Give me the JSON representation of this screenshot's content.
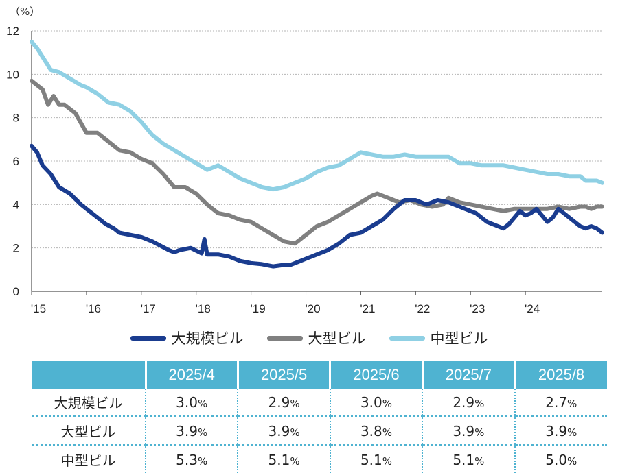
{
  "chart_data": {
    "type": "line",
    "ylabel": "（%）",
    "ylim": [
      0,
      12
    ],
    "yticks": [
      "0",
      "2",
      "4",
      "6",
      "8",
      "10",
      "12"
    ],
    "xticks": [
      "'15",
      "'16",
      "'17",
      "'18",
      "'19",
      "'20",
      "'21",
      "'22",
      "'23",
      "'24"
    ],
    "grid": true,
    "legend_position": "bottom",
    "series": [
      {
        "name": "大規模ビル",
        "color": "#1a3c8f",
        "points": [
          [
            2015.0,
            6.7
          ],
          [
            2015.1,
            6.4
          ],
          [
            2015.2,
            5.8
          ],
          [
            2015.35,
            5.4
          ],
          [
            2015.5,
            4.8
          ],
          [
            2015.7,
            4.5
          ],
          [
            2015.9,
            4.0
          ],
          [
            2016.0,
            3.8
          ],
          [
            2016.2,
            3.4
          ],
          [
            2016.35,
            3.1
          ],
          [
            2016.5,
            2.9
          ],
          [
            2016.6,
            2.7
          ],
          [
            2016.8,
            2.6
          ],
          [
            2017.0,
            2.5
          ],
          [
            2017.2,
            2.3
          ],
          [
            2017.35,
            2.1
          ],
          [
            2017.5,
            1.9
          ],
          [
            2017.6,
            1.8
          ],
          [
            2017.7,
            1.9
          ],
          [
            2017.9,
            2.0
          ],
          [
            2018.1,
            1.75
          ],
          [
            2018.15,
            2.4
          ],
          [
            2018.2,
            1.7
          ],
          [
            2018.4,
            1.7
          ],
          [
            2018.6,
            1.6
          ],
          [
            2018.8,
            1.4
          ],
          [
            2019.0,
            1.3
          ],
          [
            2019.2,
            1.25
          ],
          [
            2019.4,
            1.15
          ],
          [
            2019.55,
            1.2
          ],
          [
            2019.7,
            1.2
          ],
          [
            2019.85,
            1.35
          ],
          [
            2020.0,
            1.5
          ],
          [
            2020.2,
            1.7
          ],
          [
            2020.4,
            1.9
          ],
          [
            2020.6,
            2.2
          ],
          [
            2020.8,
            2.6
          ],
          [
            2021.0,
            2.7
          ],
          [
            2021.2,
            3.0
          ],
          [
            2021.4,
            3.3
          ],
          [
            2021.6,
            3.8
          ],
          [
            2021.7,
            4.0
          ],
          [
            2021.8,
            4.2
          ],
          [
            2022.0,
            4.2
          ],
          [
            2022.2,
            4.0
          ],
          [
            2022.4,
            4.2
          ],
          [
            2022.6,
            4.1
          ],
          [
            2022.8,
            3.9
          ],
          [
            2022.9,
            3.8
          ],
          [
            2023.1,
            3.6
          ],
          [
            2023.3,
            3.2
          ],
          [
            2023.5,
            3.0
          ],
          [
            2023.6,
            2.9
          ],
          [
            2023.7,
            3.1
          ],
          [
            2023.8,
            3.4
          ],
          [
            2023.9,
            3.7
          ],
          [
            2024.0,
            3.5
          ],
          [
            2024.1,
            3.6
          ],
          [
            2024.2,
            3.8
          ],
          [
            2024.3,
            3.5
          ],
          [
            2024.4,
            3.2
          ],
          [
            2024.5,
            3.4
          ],
          [
            2024.6,
            3.8
          ],
          [
            2024.75,
            3.5
          ],
          [
            2024.9,
            3.2
          ],
          [
            2025.0,
            3.0
          ],
          [
            2025.1,
            2.9
          ],
          [
            2025.2,
            3.0
          ],
          [
            2025.3,
            2.9
          ],
          [
            2025.4,
            2.7
          ]
        ]
      },
      {
        "name": "大型ビル",
        "color": "#808080",
        "points": [
          [
            2015.0,
            9.7
          ],
          [
            2015.1,
            9.5
          ],
          [
            2015.2,
            9.3
          ],
          [
            2015.3,
            8.6
          ],
          [
            2015.4,
            9.0
          ],
          [
            2015.5,
            8.6
          ],
          [
            2015.6,
            8.6
          ],
          [
            2015.8,
            8.2
          ],
          [
            2016.0,
            7.3
          ],
          [
            2016.2,
            7.3
          ],
          [
            2016.4,
            6.9
          ],
          [
            2016.6,
            6.5
          ],
          [
            2016.8,
            6.4
          ],
          [
            2017.0,
            6.1
          ],
          [
            2017.2,
            5.9
          ],
          [
            2017.4,
            5.4
          ],
          [
            2017.6,
            4.8
          ],
          [
            2017.8,
            4.8
          ],
          [
            2018.0,
            4.5
          ],
          [
            2018.2,
            4.0
          ],
          [
            2018.4,
            3.6
          ],
          [
            2018.6,
            3.5
          ],
          [
            2018.8,
            3.3
          ],
          [
            2019.0,
            3.2
          ],
          [
            2019.2,
            2.9
          ],
          [
            2019.4,
            2.6
          ],
          [
            2019.6,
            2.3
          ],
          [
            2019.8,
            2.2
          ],
          [
            2020.0,
            2.6
          ],
          [
            2020.2,
            3.0
          ],
          [
            2020.4,
            3.2
          ],
          [
            2020.6,
            3.5
          ],
          [
            2020.8,
            3.8
          ],
          [
            2021.0,
            4.1
          ],
          [
            2021.2,
            4.4
          ],
          [
            2021.3,
            4.5
          ],
          [
            2021.5,
            4.3
          ],
          [
            2021.7,
            4.1
          ],
          [
            2021.9,
            4.2
          ],
          [
            2022.1,
            4.0
          ],
          [
            2022.3,
            3.9
          ],
          [
            2022.5,
            4.0
          ],
          [
            2022.6,
            4.3
          ],
          [
            2022.8,
            4.1
          ],
          [
            2023.0,
            4.0
          ],
          [
            2023.2,
            3.9
          ],
          [
            2023.4,
            3.8
          ],
          [
            2023.6,
            3.7
          ],
          [
            2023.8,
            3.8
          ],
          [
            2024.0,
            3.8
          ],
          [
            2024.2,
            3.8
          ],
          [
            2024.4,
            3.8
          ],
          [
            2024.6,
            3.9
          ],
          [
            2024.8,
            3.8
          ],
          [
            2025.0,
            3.9
          ],
          [
            2025.1,
            3.9
          ],
          [
            2025.2,
            3.8
          ],
          [
            2025.3,
            3.9
          ],
          [
            2025.4,
            3.9
          ]
        ]
      },
      {
        "name": "中型ビル",
        "color": "#8fd0e4",
        "points": [
          [
            2015.0,
            11.5
          ],
          [
            2015.1,
            11.2
          ],
          [
            2015.2,
            10.8
          ],
          [
            2015.35,
            10.2
          ],
          [
            2015.5,
            10.1
          ],
          [
            2015.7,
            9.8
          ],
          [
            2015.9,
            9.5
          ],
          [
            2016.0,
            9.4
          ],
          [
            2016.2,
            9.1
          ],
          [
            2016.4,
            8.7
          ],
          [
            2016.6,
            8.6
          ],
          [
            2016.8,
            8.3
          ],
          [
            2017.0,
            7.8
          ],
          [
            2017.2,
            7.2
          ],
          [
            2017.4,
            6.8
          ],
          [
            2017.6,
            6.5
          ],
          [
            2017.8,
            6.2
          ],
          [
            2018.0,
            5.9
          ],
          [
            2018.2,
            5.6
          ],
          [
            2018.4,
            5.8
          ],
          [
            2018.6,
            5.5
          ],
          [
            2018.8,
            5.2
          ],
          [
            2019.0,
            5.0
          ],
          [
            2019.2,
            4.8
          ],
          [
            2019.4,
            4.7
          ],
          [
            2019.6,
            4.8
          ],
          [
            2019.8,
            5.0
          ],
          [
            2020.0,
            5.2
          ],
          [
            2020.2,
            5.5
          ],
          [
            2020.4,
            5.7
          ],
          [
            2020.6,
            5.8
          ],
          [
            2020.8,
            6.1
          ],
          [
            2021.0,
            6.4
          ],
          [
            2021.2,
            6.3
          ],
          [
            2021.4,
            6.2
          ],
          [
            2021.6,
            6.2
          ],
          [
            2021.8,
            6.3
          ],
          [
            2022.0,
            6.2
          ],
          [
            2022.2,
            6.2
          ],
          [
            2022.4,
            6.2
          ],
          [
            2022.6,
            6.2
          ],
          [
            2022.8,
            5.9
          ],
          [
            2023.0,
            5.9
          ],
          [
            2023.2,
            5.8
          ],
          [
            2023.4,
            5.8
          ],
          [
            2023.6,
            5.8
          ],
          [
            2023.8,
            5.7
          ],
          [
            2024.0,
            5.6
          ],
          [
            2024.2,
            5.5
          ],
          [
            2024.4,
            5.4
          ],
          [
            2024.6,
            5.4
          ],
          [
            2024.8,
            5.3
          ],
          [
            2025.0,
            5.3
          ],
          [
            2025.1,
            5.1
          ],
          [
            2025.2,
            5.1
          ],
          [
            2025.3,
            5.1
          ],
          [
            2025.4,
            5.0
          ]
        ]
      }
    ]
  },
  "table": {
    "headers": [
      "",
      "2025/4",
      "2025/5",
      "2025/6",
      "2025/7",
      "2025/8"
    ],
    "rows": [
      {
        "label": "大規模ビル",
        "cells": [
          [
            "3.0",
            "%"
          ],
          [
            "2.9",
            "%"
          ],
          [
            "3.0",
            "%"
          ],
          [
            "2.9",
            "%"
          ],
          [
            "2.7",
            "%"
          ]
        ]
      },
      {
        "label": "大型ビル",
        "cells": [
          [
            "3.9",
            "%"
          ],
          [
            "3.9",
            "%"
          ],
          [
            "3.8",
            "%"
          ],
          [
            "3.9",
            "%"
          ],
          [
            "3.9",
            "%"
          ]
        ]
      },
      {
        "label": "中型ビル",
        "cells": [
          [
            "5.3",
            "%"
          ],
          [
            "5.1",
            "%"
          ],
          [
            "5.1",
            "%"
          ],
          [
            "5.1",
            "%"
          ],
          [
            "5.0",
            "%"
          ]
        ]
      }
    ]
  }
}
